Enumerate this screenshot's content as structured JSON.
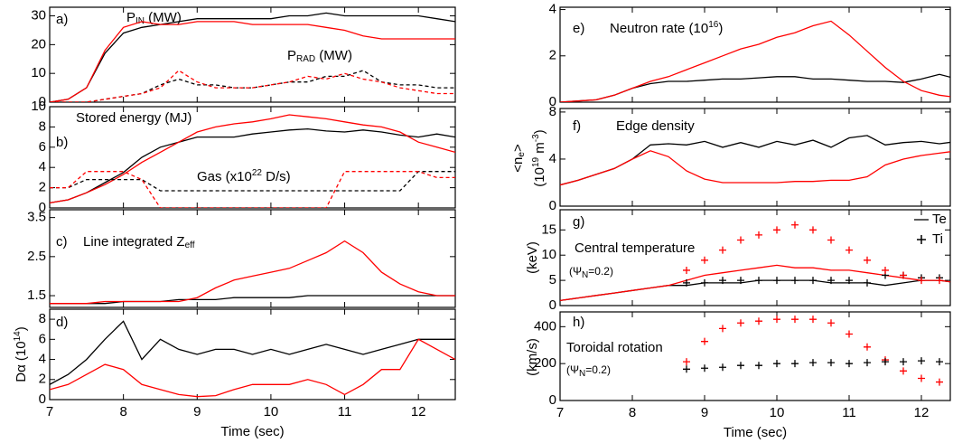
{
  "chart_data": [
    {
      "type": "line",
      "label": "a)",
      "annotations": [
        {
          "spans": [
            {
              "text": "P"
            },
            {
              "text": "IN",
              "style": "sub"
            },
            {
              "text": " (MW)"
            }
          ]
        },
        {
          "spans": [
            {
              "text": "P"
            },
            {
              "text": "RAD",
              "style": "sub"
            },
            {
              "text": " (MW)"
            }
          ]
        }
      ],
      "x": [
        7,
        7.25,
        7.5,
        7.75,
        8,
        8.25,
        8.5,
        8.75,
        9,
        9.25,
        9.5,
        9.75,
        10,
        10.25,
        10.5,
        10.75,
        11,
        11.25,
        11.5,
        11.75,
        12,
        12.25,
        12.5
      ],
      "xlim": [
        7,
        12.5
      ],
      "ylim": [
        0,
        33
      ],
      "yticks": [
        0,
        10,
        20,
        30
      ],
      "series": [
        {
          "color": "#000000",
          "values": [
            0,
            1,
            5,
            17,
            24,
            26,
            27,
            28,
            29,
            29,
            29,
            29,
            29,
            30,
            30,
            31,
            30,
            30,
            30,
            30,
            30,
            29,
            28
          ]
        },
        {
          "color": "#ff0000",
          "values": [
            0,
            1,
            5,
            18,
            26,
            28,
            27,
            27,
            28,
            28,
            28,
            27,
            27,
            27,
            27,
            26,
            25,
            23,
            22,
            22,
            22,
            22,
            22
          ]
        },
        {
          "color": "#000000",
          "dash": true,
          "values": [
            0,
            0,
            0,
            1,
            2,
            3,
            6,
            8,
            6,
            6,
            5,
            5,
            6,
            7,
            7,
            9,
            9,
            11,
            7,
            6,
            6,
            5,
            5
          ]
        },
        {
          "color": "#ff0000",
          "dash": true,
          "values": [
            0,
            0,
            0,
            1,
            2,
            3,
            5,
            11,
            7,
            5,
            5,
            5,
            6,
            7,
            9,
            8,
            10,
            8,
            7,
            5,
            4,
            3,
            3
          ]
        }
      ]
    },
    {
      "type": "line",
      "label": "b)",
      "annotations": [
        {
          "spans": [
            {
              "text": "Stored energy (MJ)"
            }
          ]
        },
        {
          "spans": [
            {
              "text": "Gas (x10"
            },
            {
              "text": "22",
              "style": "sup"
            },
            {
              "text": " D/s)"
            }
          ]
        }
      ],
      "x": [
        7,
        7.25,
        7.5,
        7.75,
        8,
        8.25,
        8.5,
        8.75,
        9,
        9.25,
        9.5,
        9.75,
        10,
        10.25,
        10.5,
        10.75,
        11,
        11.25,
        11.5,
        11.75,
        12,
        12.25,
        12.5
      ],
      "xlim": [
        7,
        12.5
      ],
      "ylim": [
        0,
        10
      ],
      "yticks": [
        0,
        2,
        4,
        6,
        8,
        10
      ],
      "series": [
        {
          "color": "#000000",
          "values": [
            0.5,
            0.8,
            1.5,
            2.5,
            3.5,
            5,
            6,
            6.5,
            7,
            7,
            7,
            7.3,
            7.5,
            7.7,
            7.8,
            7.6,
            7.5,
            7.7,
            7.5,
            7.2,
            7,
            7.3,
            7
          ]
        },
        {
          "color": "#ff0000",
          "values": [
            0.5,
            0.8,
            1.5,
            2.3,
            3.3,
            4.5,
            5.5,
            6.5,
            7.5,
            8,
            8.3,
            8.5,
            8.8,
            9.2,
            9,
            8.8,
            8.5,
            8.2,
            8,
            7.5,
            6.5,
            6,
            5.5
          ]
        },
        {
          "color": "#000000",
          "dash": true,
          "values": [
            2,
            2,
            2.8,
            2.8,
            2.8,
            2.8,
            1.7,
            1.7,
            1.7,
            1.7,
            1.7,
            1.7,
            1.7,
            1.7,
            1.7,
            1.7,
            1.7,
            1.7,
            1.7,
            1.7,
            3.6,
            3.6,
            3.6
          ]
        },
        {
          "color": "#ff0000",
          "dash": true,
          "values": [
            2,
            2,
            3.6,
            3.6,
            3.6,
            2.8,
            0,
            0,
            0,
            0,
            0,
            0,
            0,
            0,
            0,
            0,
            3.6,
            3.6,
            3.6,
            3.6,
            3.6,
            3,
            3
          ]
        }
      ]
    },
    {
      "type": "line",
      "label": "c)",
      "annotations": [
        {
          "spans": [
            {
              "text": "Line integrated Z"
            },
            {
              "text": "eff",
              "style": "sub"
            }
          ]
        }
      ],
      "x": [
        7,
        7.25,
        7.5,
        7.75,
        8,
        8.25,
        8.5,
        8.75,
        9,
        9.25,
        9.5,
        9.75,
        10,
        10.25,
        10.5,
        10.75,
        11,
        11.25,
        11.5,
        11.75,
        12,
        12.25,
        12.5
      ],
      "xlim": [
        7,
        12.5
      ],
      "ylim": [
        1.2,
        3.7
      ],
      "yticks": [
        1.5,
        2.5,
        3.5
      ],
      "series": [
        {
          "color": "#000000",
          "values": [
            1.3,
            1.3,
            1.3,
            1.3,
            1.35,
            1.35,
            1.35,
            1.4,
            1.4,
            1.4,
            1.45,
            1.45,
            1.45,
            1.45,
            1.5,
            1.5,
            1.5,
            1.5,
            1.5,
            1.5,
            1.5,
            1.5,
            1.5
          ]
        },
        {
          "color": "#ff0000",
          "values": [
            1.3,
            1.3,
            1.3,
            1.35,
            1.35,
            1.35,
            1.35,
            1.35,
            1.45,
            1.7,
            1.9,
            2.0,
            2.1,
            2.2,
            2.4,
            2.6,
            2.9,
            2.6,
            2.1,
            1.8,
            1.6,
            1.5,
            1.5
          ]
        }
      ]
    },
    {
      "type": "line",
      "label": "d)",
      "ylabel": [
        {
          "spans": [
            {
              "text": "Dα (10"
            },
            {
              "text": "14",
              "style": "sup"
            },
            {
              "text": ")"
            }
          ]
        }
      ],
      "x": [
        7,
        7.25,
        7.5,
        7.75,
        8,
        8.25,
        8.5,
        8.75,
        9,
        9.25,
        9.5,
        9.75,
        10,
        10.25,
        10.5,
        10.75,
        11,
        11.25,
        11.5,
        11.75,
        12,
        12.25,
        12.5
      ],
      "xlim": [
        7,
        12.5
      ],
      "ylim": [
        0,
        9
      ],
      "yticks": [
        0,
        2,
        4,
        6,
        8
      ],
      "xticks": [
        7,
        8,
        9,
        10,
        11,
        12
      ],
      "xlabel": "Time (sec)",
      "series": [
        {
          "color": "#000000",
          "values": [
            1.5,
            2.5,
            4,
            6,
            7.8,
            4,
            6,
            5,
            4.5,
            5,
            5,
            4.5,
            5,
            4.5,
            5,
            5.5,
            5,
            4.5,
            5,
            5.5,
            6,
            6,
            6
          ]
        },
        {
          "color": "#ff0000",
          "values": [
            1,
            1.5,
            2.5,
            3.5,
            3,
            1.5,
            1,
            0.5,
            0.3,
            0.4,
            1,
            1.5,
            1.5,
            1.5,
            2,
            1.5,
            0.5,
            1.5,
            3,
            3,
            6,
            5,
            4
          ]
        }
      ]
    },
    {
      "type": "line",
      "label": "e)",
      "annotations": [
        {
          "spans": [
            {
              "text": "Neutron rate (10"
            },
            {
              "text": "16",
              "style": "sup"
            },
            {
              "text": ")"
            }
          ]
        }
      ],
      "x": [
        7,
        7.25,
        7.5,
        7.75,
        8,
        8.25,
        8.5,
        8.75,
        9,
        9.25,
        9.5,
        9.75,
        10,
        10.25,
        10.5,
        10.75,
        11,
        11.25,
        11.5,
        11.75,
        12,
        12.25,
        12.5
      ],
      "xlim": [
        7,
        12.4
      ],
      "ylim": [
        0,
        4.1
      ],
      "yticks": [
        0,
        2,
        4
      ],
      "series": [
        {
          "color": "#000000",
          "values": [
            0,
            0.05,
            0.1,
            0.3,
            0.6,
            0.8,
            0.9,
            0.9,
            0.95,
            1,
            1,
            1.05,
            1.1,
            1.1,
            1,
            1,
            0.95,
            0.9,
            0.9,
            0.85,
            1,
            1.2,
            1
          ]
        },
        {
          "color": "#ff0000",
          "values": [
            0,
            0.05,
            0.1,
            0.3,
            0.6,
            0.9,
            1.1,
            1.4,
            1.7,
            2,
            2.3,
            2.5,
            2.8,
            3,
            3.3,
            3.5,
            2.9,
            2.2,
            1.5,
            0.9,
            0.5,
            0.3,
            0.2
          ]
        }
      ]
    },
    {
      "type": "line",
      "label": "f)",
      "annotations": [
        {
          "spans": [
            {
              "text": "Edge density"
            }
          ]
        }
      ],
      "ylabel": [
        {
          "spans": [
            {
              "text": "<n"
            },
            {
              "text": "e",
              "style": "sub"
            },
            {
              "text": ">"
            }
          ]
        },
        {
          "spans": [
            {
              "text": "(10"
            },
            {
              "text": "19",
              "style": "sup"
            },
            {
              "text": " m"
            },
            {
              "text": "-3",
              "style": "sup"
            },
            {
              "text": ")"
            }
          ]
        }
      ],
      "x": [
        7,
        7.25,
        7.5,
        7.75,
        8,
        8.25,
        8.5,
        8.75,
        9,
        9.25,
        9.5,
        9.75,
        10,
        10.25,
        10.5,
        10.75,
        11,
        11.25,
        11.5,
        11.75,
        12,
        12.25,
        12.5
      ],
      "xlim": [
        7,
        12.4
      ],
      "ylim": [
        0,
        8.3
      ],
      "yticks": [
        0,
        4,
        8
      ],
      "series": [
        {
          "color": "#000000",
          "values": [
            1.8,
            2.2,
            2.7,
            3.2,
            4,
            5.2,
            5.3,
            5.2,
            5.5,
            5,
            5.4,
            5,
            5.5,
            5.2,
            5.6,
            5,
            5.8,
            6,
            5.2,
            5.4,
            5.5,
            5.3,
            5.5
          ]
        },
        {
          "color": "#ff0000",
          "values": [
            1.8,
            2.2,
            2.7,
            3.2,
            4,
            4.7,
            4.2,
            3,
            2.3,
            2,
            2,
            2,
            2,
            2.1,
            2.1,
            2.2,
            2.2,
            2.5,
            3.5,
            4,
            4.3,
            4.5,
            4.7
          ]
        }
      ]
    },
    {
      "type": "line",
      "label": "g)",
      "annotations": [
        {
          "spans": [
            {
              "text": "Central temperature"
            }
          ]
        },
        {
          "spans": [
            {
              "text": "(Ψ"
            },
            {
              "text": "N",
              "style": "sub"
            },
            {
              "text": "=0.2)"
            }
          ]
        }
      ],
      "ylabel": [
        {
          "spans": [
            {
              "text": "(keV)"
            }
          ]
        }
      ],
      "x": [
        7,
        7.25,
        7.5,
        7.75,
        8,
        8.25,
        8.5,
        8.75,
        9,
        9.25,
        9.5,
        9.75,
        10,
        10.25,
        10.5,
        10.75,
        11,
        11.25,
        11.5,
        11.75,
        12,
        12.25,
        12.5
      ],
      "xlim": [
        7,
        12.4
      ],
      "ylim": [
        0,
        19
      ],
      "yticks": [
        0,
        5,
        10,
        15
      ],
      "series": [
        {
          "name": "Te",
          "color": "#000000",
          "values": [
            1,
            1.5,
            2,
            2.5,
            3,
            3.5,
            4,
            4,
            4.5,
            4.5,
            4.5,
            5,
            5,
            5,
            5,
            4.5,
            4.5,
            4.5,
            4,
            4.5,
            5,
            5,
            4.5
          ]
        },
        {
          "color": "#ff0000",
          "values": [
            1,
            1.5,
            2,
            2.5,
            3,
            3.5,
            4,
            5,
            6,
            6.5,
            7,
            7.5,
            8,
            7.5,
            7.5,
            7,
            7,
            6.5,
            6,
            5.5,
            5,
            5,
            4.5
          ]
        },
        {
          "name": "Ti",
          "color": "#000000",
          "marker": "+",
          "values": [
            null,
            null,
            null,
            null,
            null,
            null,
            null,
            4.5,
            4.5,
            5,
            5,
            5,
            5,
            5,
            5,
            5,
            5,
            4.5,
            6,
            6,
            5.5,
            5.5,
            5.5
          ]
        },
        {
          "color": "#ff0000",
          "marker": "+",
          "values": [
            null,
            null,
            null,
            null,
            null,
            null,
            null,
            7,
            9,
            11,
            13,
            14,
            15,
            16,
            15,
            13,
            11,
            9,
            7,
            6,
            5,
            5,
            4.5
          ]
        }
      ]
    },
    {
      "type": "line",
      "label": "h)",
      "annotations": [
        {
          "spans": [
            {
              "text": "Toroidal rotation"
            }
          ]
        },
        {
          "spans": [
            {
              "text": "(Ψ"
            },
            {
              "text": "N",
              "style": "sub"
            },
            {
              "text": "=0.2)"
            }
          ]
        }
      ],
      "ylabel": [
        {
          "spans": [
            {
              "text": "(km/s)"
            }
          ]
        }
      ],
      "x": [
        7,
        7.25,
        7.5,
        7.75,
        8,
        8.25,
        8.5,
        8.75,
        9,
        9.25,
        9.5,
        9.75,
        10,
        10.25,
        10.5,
        10.75,
        11,
        11.25,
        11.5,
        11.75,
        12,
        12.25,
        12.5
      ],
      "xlim": [
        7,
        12.4
      ],
      "ylim": [
        0,
        480
      ],
      "yticks": [
        0,
        200,
        400
      ],
      "xticks": [
        7,
        8,
        9,
        10,
        11,
        12
      ],
      "xlabel": "Time (sec)",
      "series": [
        {
          "color": "#ff0000",
          "marker": "+",
          "values": [
            null,
            null,
            null,
            null,
            null,
            null,
            null,
            210,
            320,
            390,
            420,
            430,
            440,
            440,
            440,
            420,
            360,
            290,
            220,
            160,
            120,
            100,
            90
          ]
        },
        {
          "color": "#000000",
          "marker": "+",
          "values": [
            null,
            null,
            null,
            null,
            null,
            null,
            null,
            170,
            175,
            180,
            190,
            190,
            200,
            200,
            205,
            205,
            200,
            205,
            210,
            210,
            215,
            210,
            200
          ]
        }
      ]
    }
  ]
}
